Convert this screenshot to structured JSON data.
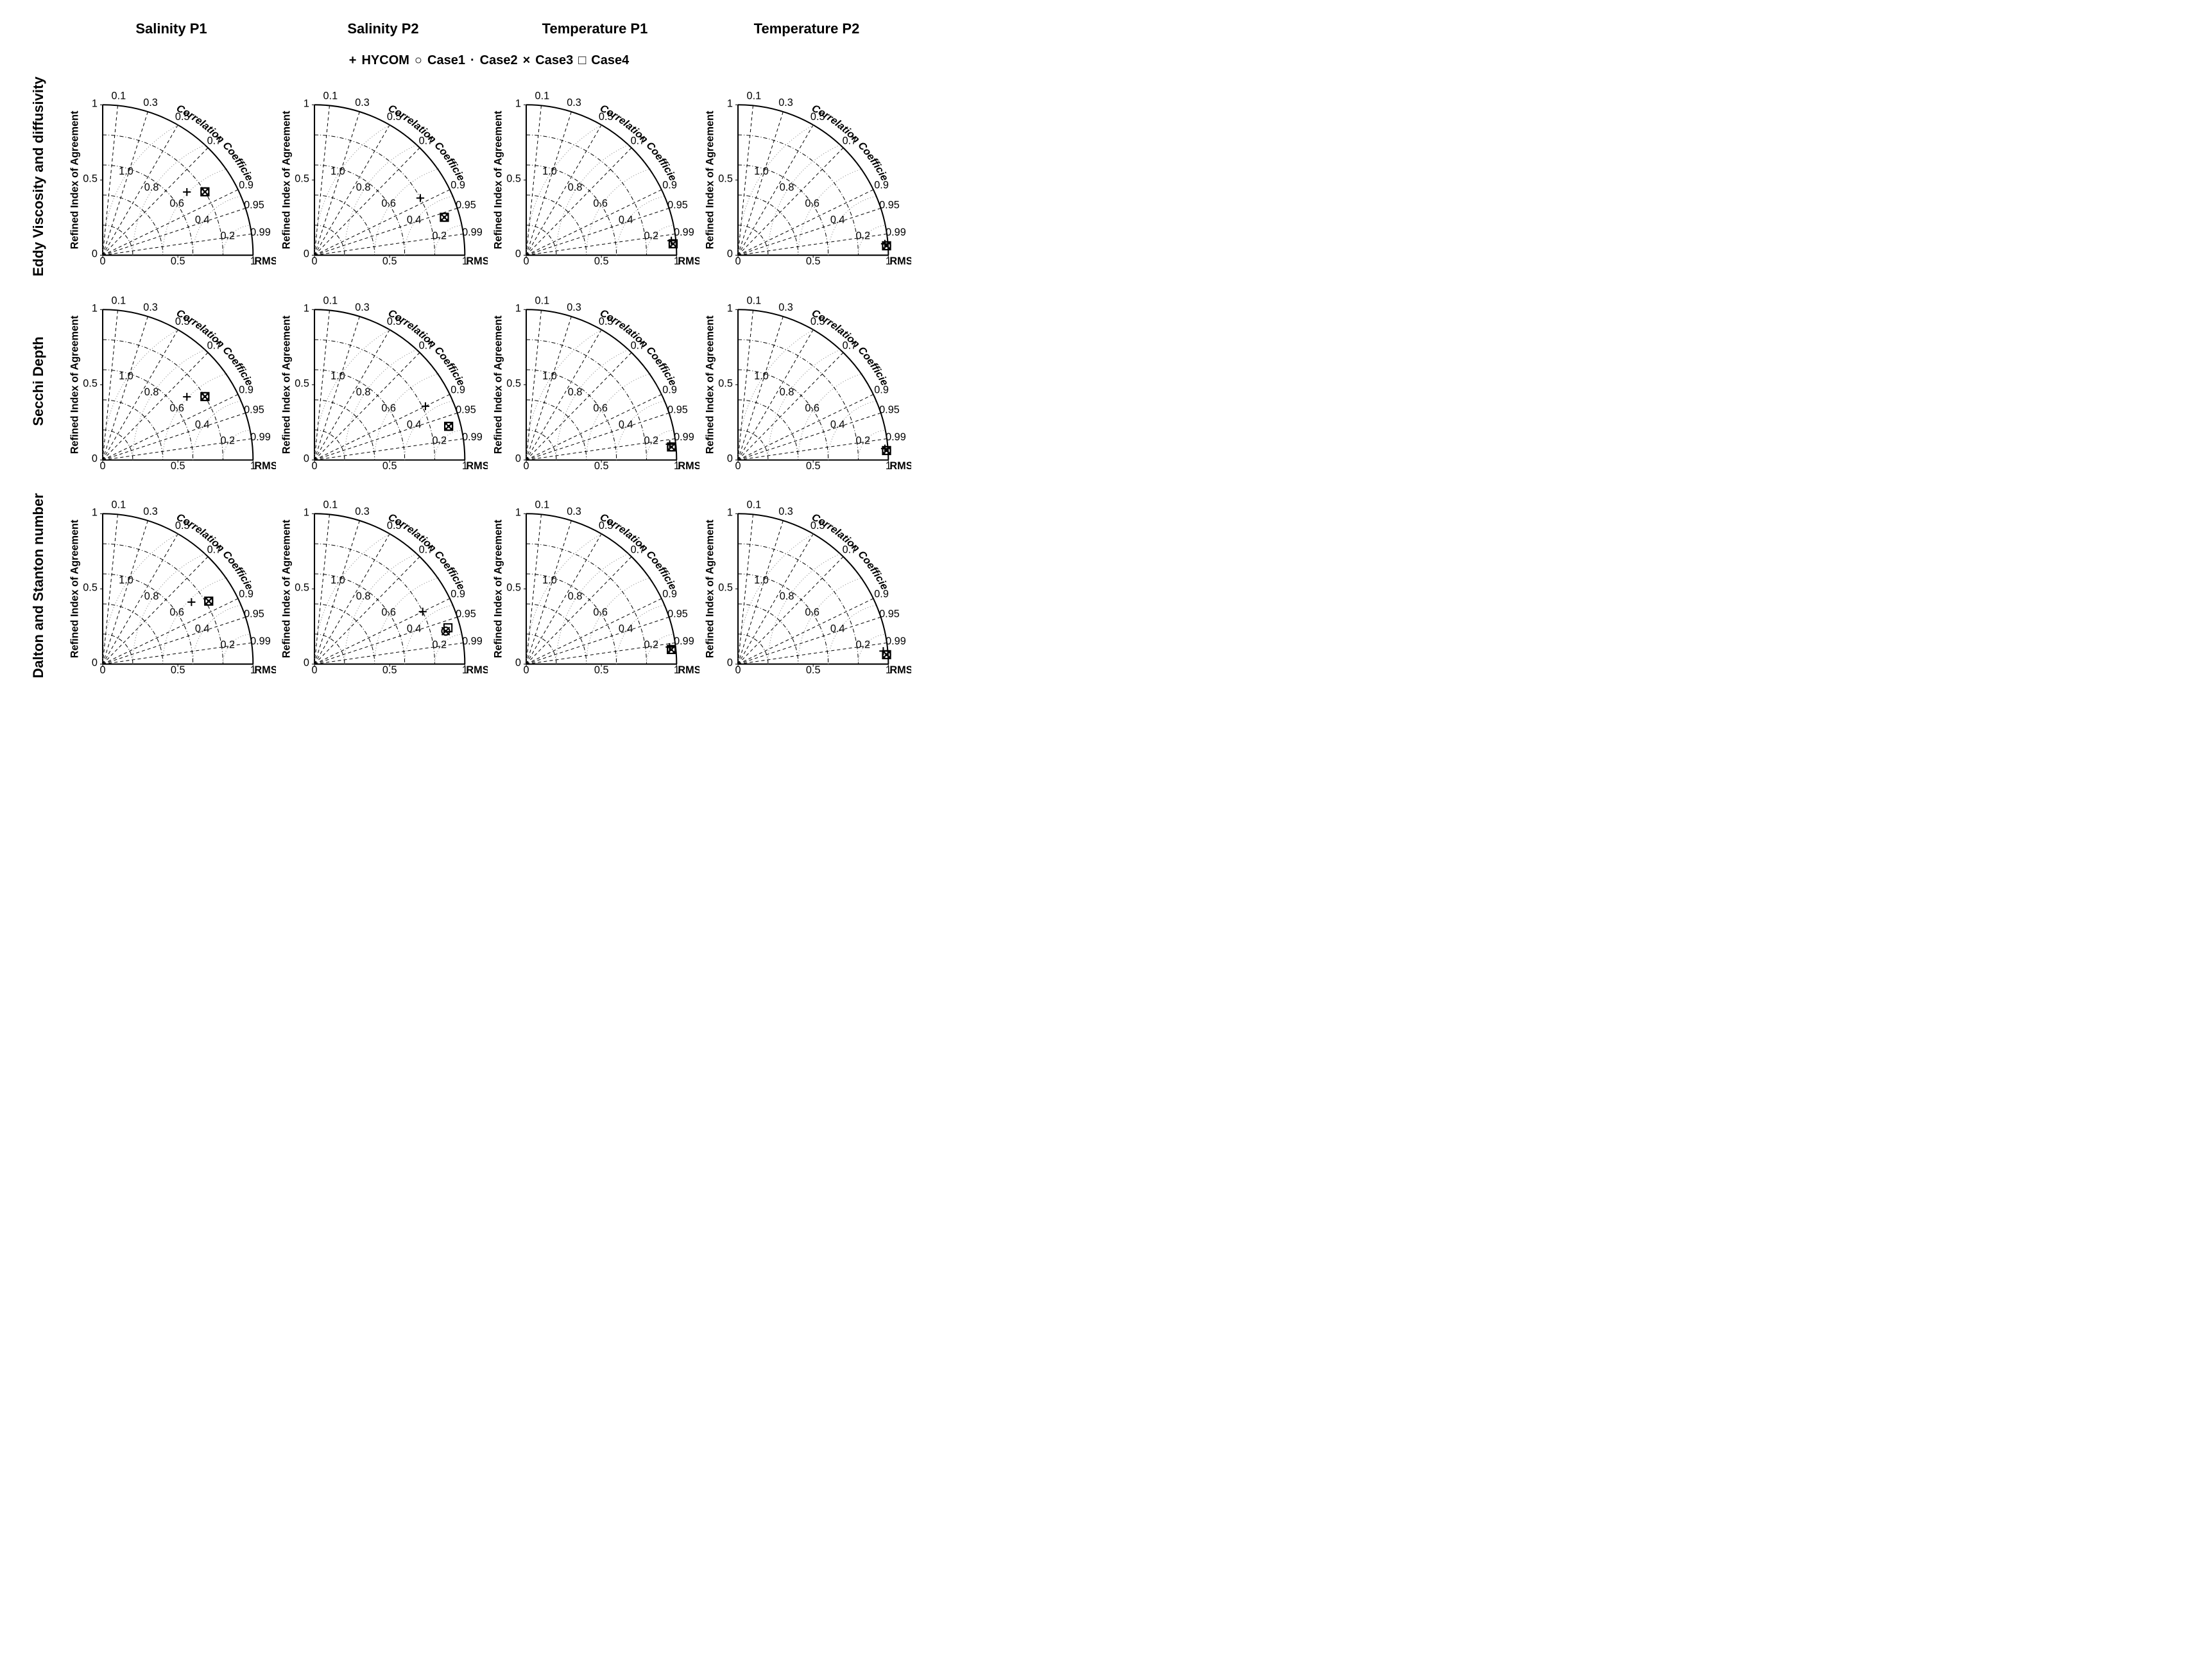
{
  "colors": {
    "background": "#ffffff",
    "line": "#000000",
    "grid_dashed": "#000000",
    "grid_dotted": "#808080",
    "text": "#000000"
  },
  "fonts": {
    "header_size": 22,
    "header_weight": "bold",
    "legend_size": 20,
    "axis_label_size": 11,
    "tick_size": 9,
    "arc_label_size": 14
  },
  "columns": [
    "Salinity P1",
    "Salinity P2",
    "Temperature P1",
    "Temperature P2"
  ],
  "rows": [
    "Eddy Viscosity and diffusivity",
    "Secchi Depth",
    "Dalton and Stanton number"
  ],
  "legend": [
    {
      "symbol": "plus",
      "glyph": "+",
      "label": "HYCOM"
    },
    {
      "symbol": "circle",
      "glyph": "○",
      "label": "Case1"
    },
    {
      "symbol": "dot",
      "glyph": "·",
      "label": "Case2"
    },
    {
      "symbol": "cross",
      "glyph": "×",
      "label": "Case3"
    },
    {
      "symbol": "square",
      "glyph": "□",
      "label": "Case4"
    }
  ],
  "taylor_config": {
    "type": "taylor-diagram",
    "std_max": 1.0,
    "std_ticks": [
      0.0,
      0.5,
      1.0
    ],
    "corr_ticks": [
      0.1,
      0.3,
      0.5,
      0.7,
      0.9,
      0.95,
      0.99
    ],
    "rmsd_ticks": [
      0.0,
      0.2,
      0.4,
      0.6,
      0.8,
      1.0
    ],
    "ria_ticks": [
      0.0,
      0.2,
      0.4,
      0.6,
      0.8,
      1.0
    ],
    "axis_label_x": "RMSD",
    "axis_label_y": "Refined Index of Agreement",
    "arc_label": "Correlation Coefficient",
    "reference_std": 1.0,
    "line_width_outer": 2,
    "line_width_grid": 1,
    "dash_pattern_corr": "5,4",
    "dot_pattern_rmsd": "1,3",
    "dashdot_pattern_ria": "6,3,1,3"
  },
  "plots": [
    {
      "row": 0,
      "col": 0,
      "points": [
        {
          "sym": "plus",
          "std": 0.7,
          "corr": 0.8
        },
        {
          "sym": "circle",
          "std": 0.8,
          "corr": 0.85
        },
        {
          "sym": "dot",
          "std": 0.8,
          "corr": 0.85
        },
        {
          "sym": "cross",
          "std": 0.8,
          "corr": 0.85
        },
        {
          "sym": "square",
          "std": 0.8,
          "corr": 0.85
        }
      ]
    },
    {
      "row": 0,
      "col": 1,
      "points": [
        {
          "sym": "plus",
          "std": 0.8,
          "corr": 0.88
        },
        {
          "sym": "circle",
          "std": 0.9,
          "corr": 0.96
        },
        {
          "sym": "dot",
          "std": 0.9,
          "corr": 0.96
        },
        {
          "sym": "cross",
          "std": 0.9,
          "corr": 0.96
        },
        {
          "sym": "square",
          "std": 0.9,
          "corr": 0.96
        }
      ]
    },
    {
      "row": 0,
      "col": 2,
      "points": [
        {
          "sym": "plus",
          "std": 0.97,
          "corr": 0.995
        },
        {
          "sym": "circle",
          "std": 0.98,
          "corr": 0.997
        },
        {
          "sym": "dot",
          "std": 0.98,
          "corr": 0.997
        },
        {
          "sym": "cross",
          "std": 0.98,
          "corr": 0.997
        },
        {
          "sym": "square",
          "std": 0.98,
          "corr": 0.997
        }
      ]
    },
    {
      "row": 0,
      "col": 3,
      "points": [
        {
          "sym": "plus",
          "std": 0.98,
          "corr": 0.997
        },
        {
          "sym": "circle",
          "std": 0.99,
          "corr": 0.998
        },
        {
          "sym": "dot",
          "std": 0.99,
          "corr": 0.998
        },
        {
          "sym": "cross",
          "std": 0.99,
          "corr": 0.998
        },
        {
          "sym": "square",
          "std": 0.99,
          "corr": 0.998
        }
      ]
    },
    {
      "row": 1,
      "col": 0,
      "points": [
        {
          "sym": "plus",
          "std": 0.7,
          "corr": 0.8
        },
        {
          "sym": "circle",
          "std": 0.8,
          "corr": 0.85
        },
        {
          "sym": "dot",
          "std": 0.8,
          "corr": 0.85
        },
        {
          "sym": "cross",
          "std": 0.8,
          "corr": 0.85
        },
        {
          "sym": "square",
          "std": 0.8,
          "corr": 0.85
        }
      ]
    },
    {
      "row": 1,
      "col": 1,
      "points": [
        {
          "sym": "plus",
          "std": 0.82,
          "corr": 0.9
        },
        {
          "sym": "circle",
          "std": 0.92,
          "corr": 0.97
        },
        {
          "sym": "dot",
          "std": 0.92,
          "corr": 0.97
        },
        {
          "sym": "cross",
          "std": 0.92,
          "corr": 0.97
        },
        {
          "sym": "square",
          "std": 0.92,
          "corr": 0.97
        }
      ]
    },
    {
      "row": 1,
      "col": 2,
      "points": [
        {
          "sym": "plus",
          "std": 0.96,
          "corr": 0.994
        },
        {
          "sym": "circle",
          "std": 0.97,
          "corr": 0.996
        },
        {
          "sym": "dot",
          "std": 0.97,
          "corr": 0.996
        },
        {
          "sym": "cross",
          "std": 0.97,
          "corr": 0.996
        },
        {
          "sym": "square",
          "std": 0.97,
          "corr": 0.996
        }
      ]
    },
    {
      "row": 1,
      "col": 3,
      "points": [
        {
          "sym": "plus",
          "std": 0.98,
          "corr": 0.997
        },
        {
          "sym": "circle",
          "std": 0.99,
          "corr": 0.998
        },
        {
          "sym": "dot",
          "std": 0.99,
          "corr": 0.998
        },
        {
          "sym": "cross",
          "std": 0.99,
          "corr": 0.998
        },
        {
          "sym": "square",
          "std": 0.99,
          "corr": 0.998
        }
      ]
    },
    {
      "row": 2,
      "col": 0,
      "points": [
        {
          "sym": "plus",
          "std": 0.72,
          "corr": 0.82
        },
        {
          "sym": "circle",
          "std": 0.82,
          "corr": 0.86
        },
        {
          "sym": "dot",
          "std": 0.82,
          "corr": 0.86
        },
        {
          "sym": "cross",
          "std": 0.82,
          "corr": 0.86
        },
        {
          "sym": "square",
          "std": 0.82,
          "corr": 0.86
        }
      ]
    },
    {
      "row": 2,
      "col": 1,
      "points": [
        {
          "sym": "plus",
          "std": 0.8,
          "corr": 0.9
        },
        {
          "sym": "circle",
          "std": 0.9,
          "corr": 0.97
        },
        {
          "sym": "dot",
          "std": 0.9,
          "corr": 0.97
        },
        {
          "sym": "cross",
          "std": 0.9,
          "corr": 0.97
        },
        {
          "sym": "square",
          "std": 0.92,
          "corr": 0.965
        }
      ]
    },
    {
      "row": 2,
      "col": 2,
      "points": [
        {
          "sym": "plus",
          "std": 0.96,
          "corr": 0.993
        },
        {
          "sym": "circle",
          "std": 0.97,
          "corr": 0.995
        },
        {
          "sym": "dot",
          "std": 0.97,
          "corr": 0.995
        },
        {
          "sym": "cross",
          "std": 0.97,
          "corr": 0.995
        },
        {
          "sym": "square",
          "std": 0.97,
          "corr": 0.995
        }
      ]
    },
    {
      "row": 2,
      "col": 3,
      "points": [
        {
          "sym": "plus",
          "std": 0.97,
          "corr": 0.996
        },
        {
          "sym": "circle",
          "std": 0.99,
          "corr": 0.998
        },
        {
          "sym": "dot",
          "std": 0.99,
          "corr": 0.998
        },
        {
          "sym": "cross",
          "std": 0.99,
          "corr": 0.998
        },
        {
          "sym": "square",
          "std": 0.99,
          "corr": 0.998
        }
      ]
    }
  ]
}
